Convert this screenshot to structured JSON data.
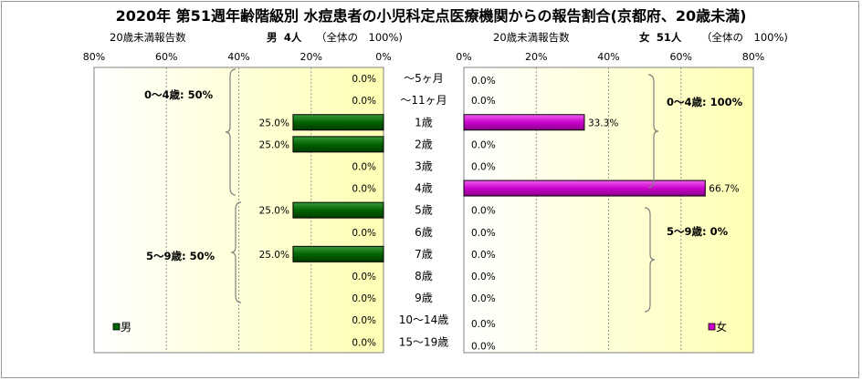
{
  "title": "2020年 第51週年齢階級別 水痘患者の小児科定点医療機関からの報告割合(京都府、20歳未満)",
  "left_header": {
    "label": "20歳未満報告数",
    "sex": "男",
    "count": "4人",
    "total": "（全体の　100%)"
  },
  "right_header": {
    "label": "20歳未満報告数",
    "sex": "女",
    "count": "51人",
    "total": "（全体の　100%)"
  },
  "colors": {
    "male": "#006400",
    "female": "#cc00cc"
  },
  "chart_data": [
    {
      "type": "bar",
      "orientation": "horizontal-reversed",
      "series": [
        {
          "name": "男",
          "values": [
            0,
            0,
            25,
            25,
            0,
            0,
            25,
            0,
            25,
            0,
            0,
            0,
            0
          ]
        }
      ],
      "value_labels": [
        "0.0%",
        "0.0%",
        "25.0%",
        "25.0%",
        "0.0%",
        "0.0%",
        "25.0%",
        "0.0%",
        "25.0%",
        "0.0%",
        "0.0%",
        "0.0%",
        "0.0%"
      ],
      "xlim": [
        0,
        80
      ],
      "xticks": [
        "80%",
        "60%",
        "40%",
        "20%",
        "0%"
      ],
      "brackets": [
        {
          "label": "0～4歳: 50%"
        },
        {
          "label": "5～9歳: 50%"
        }
      ],
      "legend": "bottom-left"
    },
    {
      "type": "bar",
      "orientation": "horizontal",
      "series": [
        {
          "name": "女",
          "values": [
            0,
            0,
            33.3,
            0,
            0,
            66.7,
            0,
            0,
            0,
            0,
            0,
            0,
            0
          ]
        }
      ],
      "value_labels": [
        "0.0%",
        "0.0%",
        "33.3%",
        "0.0%",
        "0.0%",
        "66.7%",
        "0.0%",
        "0.0%",
        "0.0%",
        "0.0%",
        "0.0%",
        "0.0%",
        "0.0%"
      ],
      "xlim": [
        0,
        80
      ],
      "xticks": [
        "0%",
        "20%",
        "40%",
        "60%",
        "80%"
      ],
      "brackets": [
        {
          "label": "0～4歳: 100%"
        },
        {
          "label": "5～9歳: 0%"
        }
      ],
      "legend": "bottom-right"
    }
  ],
  "categories": [
    "～5ヶ月",
    "～11ヶ月",
    "1歳",
    "2歳",
    "3歳",
    "4歳",
    "5歳",
    "6歳",
    "7歳",
    "8歳",
    "9歳",
    "10～14歳",
    "15～19歳"
  ]
}
